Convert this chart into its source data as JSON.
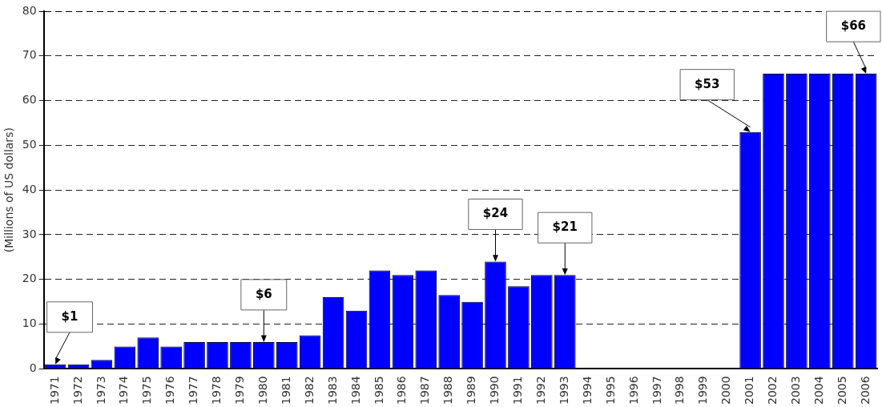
{
  "chart_data": {
    "type": "bar",
    "ylabel": "(Millions of US dollars)",
    "categories": [
      "1971",
      "1972",
      "1973",
      "1974",
      "1975",
      "1976",
      "1977",
      "1978",
      "1979",
      "1980",
      "1981",
      "1982",
      "1983",
      "1984",
      "1985",
      "1986",
      "1987",
      "1988",
      "1989",
      "1990",
      "1991",
      "1992",
      "1993",
      "1994",
      "1995",
      "1996",
      "1997",
      "1998",
      "1999",
      "2000",
      "2001",
      "2002",
      "2003",
      "2004",
      "2005",
      "2006"
    ],
    "values": [
      1,
      1,
      2,
      5,
      7,
      5,
      6,
      6,
      6,
      6,
      6,
      7.5,
      16,
      13,
      22,
      21,
      22,
      16.5,
      15,
      24,
      18.5,
      21,
      21,
      0,
      0,
      0,
      0,
      0,
      0,
      0,
      53,
      66,
      66,
      66,
      66,
      66
    ],
    "color": "#0000ff",
    "ylim": [
      0,
      80
    ],
    "yticks": [
      0,
      10,
      20,
      30,
      40,
      50,
      60,
      70,
      80
    ],
    "grid": "y",
    "legend": false,
    "annotations": [
      {
        "text": "$1",
        "x": "1971",
        "y": 1
      },
      {
        "text": "$6",
        "x": "1980",
        "y": 6
      },
      {
        "text": "$24",
        "x": "1990",
        "y": 24
      },
      {
        "text": "$21",
        "x": "1993",
        "y": 21
      },
      {
        "text": "$53",
        "x": "2001",
        "y": 53
      },
      {
        "text": "$66",
        "x": "2006",
        "y": 66
      }
    ]
  }
}
